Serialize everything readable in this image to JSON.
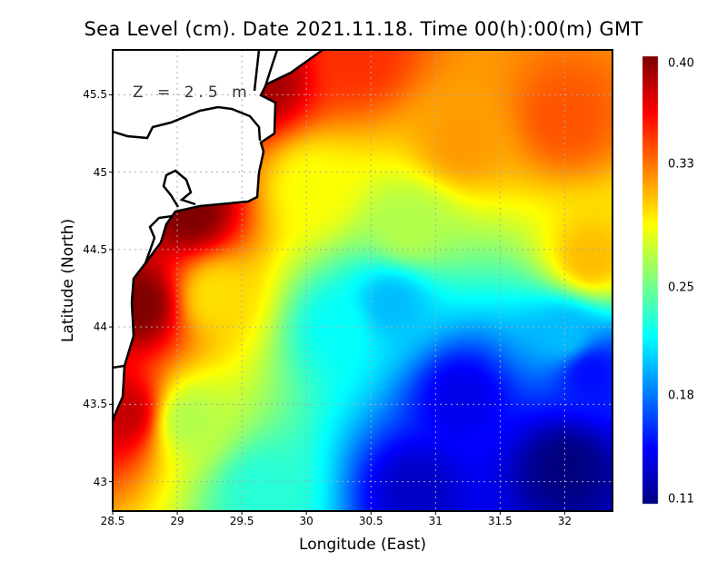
{
  "chart_data": {
    "type": "heatmap",
    "title": "Sea Level (cm). Date 2021.11.18. Time 00(h):00(m) GMT",
    "xlabel": "Longitude (East)",
    "ylabel": "Latitude (North)",
    "annotation": "Z = 2.5 m",
    "xlim": [
      28.5,
      32.37
    ],
    "ylim": [
      42.81,
      45.79
    ],
    "xticks": [
      "28.5",
      "29",
      "29.5",
      "30",
      "30.5",
      "31",
      "31.5",
      "32"
    ],
    "xtick_values": [
      28.5,
      29,
      29.5,
      30,
      30.5,
      31,
      31.5,
      32
    ],
    "yticks": [
      "43",
      "43.5",
      "44",
      "44.5",
      "45",
      "45.5"
    ],
    "ytick_values": [
      43,
      43.5,
      44,
      44.5,
      45,
      45.5
    ],
    "grid": true,
    "colorbar": {
      "range": [
        0.11,
        0.4
      ],
      "ticks": [
        "0.40",
        "0.33",
        "0.25",
        "0.18",
        "0.11"
      ],
      "tick_values": [
        0.4,
        0.33,
        0.25,
        0.18,
        0.11
      ],
      "colormap": "jet"
    },
    "field_samples": [
      {
        "lon": 28.7,
        "lat": 44.15,
        "value": 0.4
      },
      {
        "lon": 29.1,
        "lat": 44.75,
        "value": 0.4
      },
      {
        "lon": 29.65,
        "lat": 45.6,
        "value": 0.39
      },
      {
        "lon": 28.58,
        "lat": 43.45,
        "value": 0.38
      },
      {
        "lon": 30.4,
        "lat": 45.75,
        "value": 0.35
      },
      {
        "lon": 32.0,
        "lat": 45.35,
        "value": 0.34
      },
      {
        "lon": 31.2,
        "lat": 45.2,
        "value": 0.32
      },
      {
        "lon": 32.2,
        "lat": 44.45,
        "value": 0.31
      },
      {
        "lon": 30.05,
        "lat": 44.9,
        "value": 0.29
      },
      {
        "lon": 30.8,
        "lat": 44.65,
        "value": 0.27
      },
      {
        "lon": 29.3,
        "lat": 44.2,
        "value": 0.3
      },
      {
        "lon": 29.1,
        "lat": 43.4,
        "value": 0.27
      },
      {
        "lon": 29.65,
        "lat": 42.95,
        "value": 0.23
      },
      {
        "lon": 30.25,
        "lat": 44.0,
        "value": 0.22
      },
      {
        "lon": 30.65,
        "lat": 44.15,
        "value": 0.2
      },
      {
        "lon": 31.2,
        "lat": 43.55,
        "value": 0.14
      },
      {
        "lon": 32.0,
        "lat": 43.1,
        "value": 0.11
      },
      {
        "lon": 30.85,
        "lat": 42.95,
        "value": 0.13
      },
      {
        "lon": 32.2,
        "lat": 43.7,
        "value": 0.15
      },
      {
        "lon": 32.0,
        "lat": 43.95,
        "value": 0.2
      }
    ]
  }
}
